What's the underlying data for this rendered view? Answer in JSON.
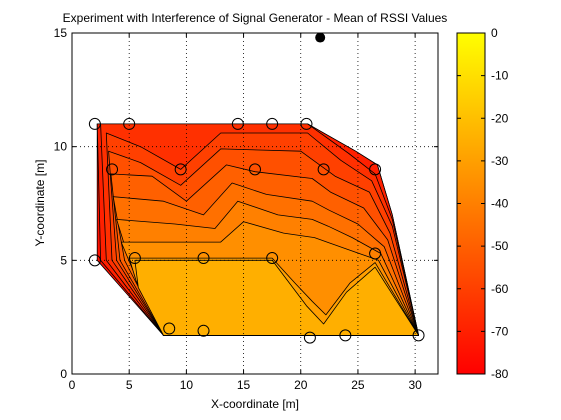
{
  "chart_data": {
    "type": "contour",
    "title": "Experiment with Interference of Signal Generator - Mean of RSSI Values",
    "xlabel": "X-coordinate [m]",
    "ylabel": "Y-coordinate [m]",
    "xlim": [
      0,
      32
    ],
    "ylim": [
      0,
      15
    ],
    "x_ticks": [
      0,
      5,
      10,
      15,
      20,
      25,
      30
    ],
    "y_ticks": [
      0,
      5,
      10,
      15
    ],
    "grid": true,
    "colorbar": {
      "range": [
        -80,
        0
      ],
      "ticks": [
        0,
        -10,
        -20,
        -30,
        -40,
        -50,
        -60,
        -70,
        -80
      ],
      "colormap": "autumn",
      "low_color": "#ff0000",
      "high_color": "#ffff00"
    },
    "measurement_points": [
      {
        "x": 2,
        "y": 11
      },
      {
        "x": 5,
        "y": 11
      },
      {
        "x": 14.5,
        "y": 11
      },
      {
        "x": 17.5,
        "y": 11
      },
      {
        "x": 20.5,
        "y": 11
      },
      {
        "x": 3.5,
        "y": 9
      },
      {
        "x": 9.5,
        "y": 9
      },
      {
        "x": 16,
        "y": 9
      },
      {
        "x": 22,
        "y": 9
      },
      {
        "x": 26.5,
        "y": 9
      },
      {
        "x": 2,
        "y": 5
      },
      {
        "x": 5.5,
        "y": 5.1
      },
      {
        "x": 11.5,
        "y": 5.1
      },
      {
        "x": 17.5,
        "y": 5.1
      },
      {
        "x": 26.5,
        "y": 5.3
      },
      {
        "x": 8.5,
        "y": 2
      },
      {
        "x": 11.5,
        "y": 1.9
      },
      {
        "x": 20.8,
        "y": 1.6
      },
      {
        "x": 23.9,
        "y": 1.7
      },
      {
        "x": 30.3,
        "y": 1.7
      }
    ],
    "signal_generator": {
      "x": 21.7,
      "y": 14.8
    },
    "contour_levels": [
      -75,
      -70,
      -65,
      -60,
      -55,
      -50,
      -45,
      -40,
      -35,
      -30,
      -25
    ],
    "contour_bands": [
      {
        "level": -75,
        "points": [
          [
            2.2,
            11
          ],
          [
            20.6,
            11
          ],
          [
            24.8,
            9.8
          ],
          [
            26.7,
            9.2
          ],
          [
            28.0,
            7.0
          ],
          [
            30.3,
            1.7
          ],
          [
            8.0,
            1.7
          ],
          [
            2.2,
            5
          ]
        ]
      },
      {
        "level": -70,
        "points": [
          [
            2.2,
            11
          ],
          [
            20.6,
            11
          ],
          [
            24.8,
            9.8
          ],
          [
            26.7,
            9.2
          ],
          [
            28.0,
            7.0
          ],
          [
            30.3,
            1.7
          ],
          [
            8.0,
            1.7
          ],
          [
            2.5,
            5
          ]
        ]
      },
      {
        "level": -65,
        "points": [
          [
            2.5,
            11
          ],
          [
            20.6,
            11
          ],
          [
            24.2,
            9.7
          ],
          [
            26.5,
            8.8
          ],
          [
            28.0,
            6.8
          ],
          [
            30.3,
            1.7
          ],
          [
            8.0,
            1.7
          ],
          [
            3.0,
            5
          ]
        ]
      },
      {
        "level": -60,
        "points": [
          [
            3.0,
            10.6
          ],
          [
            6.0,
            10.0
          ],
          [
            9.5,
            9.0
          ],
          [
            13.0,
            10.6
          ],
          [
            20.6,
            10.6
          ],
          [
            23.5,
            9.4
          ],
          [
            26.2,
            8.5
          ],
          [
            28.0,
            6.5
          ],
          [
            30.3,
            1.7
          ],
          [
            8.0,
            1.7
          ],
          [
            3.5,
            5
          ]
        ]
      },
      {
        "level": -55,
        "points": [
          [
            3.2,
            9.8
          ],
          [
            6.0,
            9.3
          ],
          [
            9.5,
            8.3
          ],
          [
            13.0,
            9.9
          ],
          [
            20.0,
            9.8
          ],
          [
            23.0,
            8.7
          ],
          [
            26.0,
            8.0
          ],
          [
            27.8,
            6.2
          ],
          [
            30.3,
            1.7
          ],
          [
            8.0,
            1.7
          ],
          [
            3.9,
            5
          ]
        ]
      },
      {
        "level": -50,
        "points": [
          [
            3.4,
            8.8
          ],
          [
            7.0,
            8.7
          ],
          [
            10.0,
            7.6
          ],
          [
            13.5,
            9.2
          ],
          [
            16.0,
            8.9
          ],
          [
            21.0,
            8.6
          ],
          [
            22.6,
            8.0
          ],
          [
            25.5,
            7.3
          ],
          [
            27.6,
            5.9
          ],
          [
            30.3,
            1.7
          ],
          [
            8.0,
            1.7
          ],
          [
            4.2,
            5
          ]
        ]
      },
      {
        "level": -45,
        "points": [
          [
            3.6,
            7.8
          ],
          [
            8.0,
            7.6
          ],
          [
            11.5,
            7.0
          ],
          [
            14.0,
            8.4
          ],
          [
            17.0,
            7.9
          ],
          [
            21.0,
            7.6
          ],
          [
            22.5,
            7.2
          ],
          [
            25.0,
            6.6
          ],
          [
            27.3,
            5.6
          ],
          [
            30.3,
            1.7
          ],
          [
            8.0,
            1.7
          ],
          [
            4.6,
            5
          ]
        ]
      },
      {
        "level": -40,
        "points": [
          [
            3.9,
            6.8
          ],
          [
            9.0,
            6.6
          ],
          [
            12.5,
            6.4
          ],
          [
            14.5,
            7.6
          ],
          [
            18.0,
            7.0
          ],
          [
            21.0,
            6.8
          ],
          [
            22.4,
            6.5
          ],
          [
            24.5,
            6.0
          ],
          [
            27.0,
            5.3
          ],
          [
            30.3,
            1.7
          ],
          [
            8.0,
            1.7
          ],
          [
            5.0,
            5
          ]
        ]
      },
      {
        "level": -35,
        "points": [
          [
            4.3,
            5.8
          ],
          [
            10.0,
            5.8
          ],
          [
            13.0,
            5.8
          ],
          [
            15.0,
            6.7
          ],
          [
            18.5,
            6.2
          ],
          [
            21.2,
            6.0
          ],
          [
            22.3,
            5.8
          ],
          [
            24.0,
            5.5
          ],
          [
            26.8,
            5.0
          ],
          [
            30.3,
            1.7
          ],
          [
            8.0,
            1.7
          ],
          [
            5.3,
            4.6
          ]
        ]
      },
      {
        "level": -30,
        "points": [
          [
            5.0,
            5.1
          ],
          [
            17.5,
            5.1
          ],
          [
            19.5,
            4.0
          ],
          [
            21.0,
            3.2
          ],
          [
            22.2,
            2.6
          ],
          [
            24.3,
            4.0
          ],
          [
            26.5,
            4.9
          ],
          [
            30.3,
            1.7
          ],
          [
            8.0,
            1.7
          ],
          [
            5.6,
            4.1
          ]
        ]
      },
      {
        "level": -25,
        "points": [
          [
            5.5,
            5.0
          ],
          [
            17.5,
            5.0
          ],
          [
            20.5,
            3.0
          ],
          [
            22.0,
            2.2
          ],
          [
            24.0,
            3.6
          ],
          [
            26.5,
            4.7
          ],
          [
            30.3,
            1.7
          ],
          [
            8.0,
            1.7
          ],
          [
            5.8,
            3.8
          ]
        ]
      }
    ]
  }
}
